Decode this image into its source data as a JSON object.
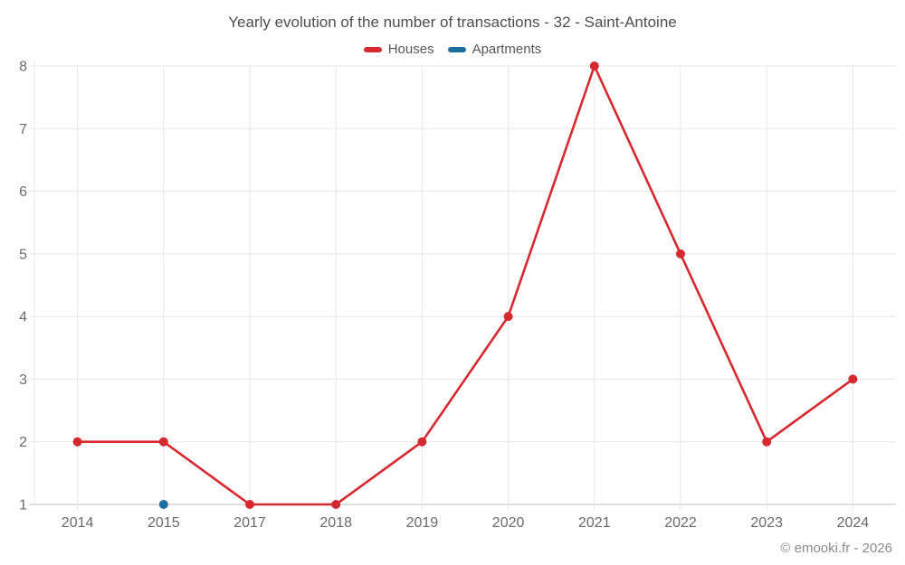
{
  "title": "Yearly evolution of the number of transactions - 32 - Saint-Antoine",
  "footer": "© emooki.fr - 2026",
  "legend": [
    {
      "label": "Houses",
      "color": "#d5292f"
    },
    {
      "label": "Apartments",
      "color": "#1a6f9e"
    }
  ],
  "colors": {
    "houses": "#d5292f",
    "apartments": "#1a6f9e",
    "gridline": "#e7e7e7",
    "axis_line": "#bfbfbf",
    "tick_label": "#6a6a6c",
    "title_text": "#4e4e50",
    "footer_text": "#8c8c8c"
  },
  "chart_data": {
    "type": "line",
    "title": "Yearly evolution of the number of transactions - 32 - Saint-Antoine",
    "categories": [
      "2014",
      "2015",
      "2017",
      "2018",
      "2019",
      "2020",
      "2021",
      "2022",
      "2023",
      "2024"
    ],
    "series": [
      {
        "name": "Houses",
        "color": "#d5292f",
        "values": [
          2,
          2,
          1,
          1,
          2,
          4,
          8,
          5,
          2,
          3
        ]
      },
      {
        "name": "Apartments",
        "color": "#1a6f9e",
        "values": [
          null,
          1,
          null,
          null,
          null,
          null,
          null,
          null,
          null,
          null
        ]
      }
    ],
    "xlabel": "",
    "ylabel": "",
    "ylim": [
      1,
      8
    ],
    "yticks": [
      1,
      2,
      3,
      4,
      5,
      6,
      7,
      8
    ],
    "grid": true,
    "legend_position": "top",
    "marker": "circle",
    "line_style": "straight"
  }
}
